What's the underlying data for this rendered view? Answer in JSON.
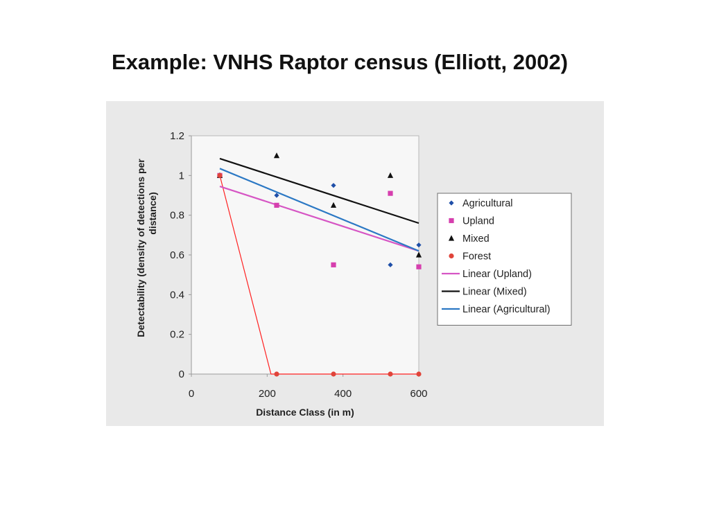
{
  "slide": {
    "title": "Example: VNHS Raptor census (Elliott, 2002)"
  },
  "chart_data": {
    "type": "scatter",
    "title": "",
    "xlabel": "Distance Class (in m)",
    "ylabel_lines": [
      "Detectability (density of detections per",
      "distance)"
    ],
    "xlim": [
      0,
      600
    ],
    "ylim": [
      0,
      1.2
    ],
    "x_ticks": [
      0,
      200,
      400,
      600
    ],
    "y_ticks": [
      0,
      0.2,
      0.4,
      0.6,
      0.8,
      1,
      1.2
    ],
    "x_tick_labels": [
      "0",
      "200",
      "400",
      "600"
    ],
    "y_tick_labels": [
      "0",
      "0.2",
      "0.4",
      "0.6",
      "0.8",
      "1",
      "1.2"
    ],
    "grid": false,
    "legend_position": "right",
    "series": [
      {
        "name": "Agricultural",
        "marker": "diamond",
        "color": "#1f4fa8",
        "points": [
          [
            75,
            1.0
          ],
          [
            225,
            0.9
          ],
          [
            375,
            0.95
          ],
          [
            525,
            0.55
          ],
          [
            600,
            0.65
          ]
        ]
      },
      {
        "name": "Upland",
        "marker": "square",
        "color": "#d63fae",
        "points": [
          [
            75,
            1.0
          ],
          [
            225,
            0.85
          ],
          [
            375,
            0.55
          ],
          [
            525,
            0.91
          ],
          [
            600,
            0.54
          ]
        ]
      },
      {
        "name": "Mixed",
        "marker": "triangle",
        "color": "#111111",
        "points": [
          [
            75,
            1.0
          ],
          [
            225,
            1.1
          ],
          [
            375,
            0.85
          ],
          [
            525,
            1.0
          ],
          [
            600,
            0.6
          ]
        ]
      },
      {
        "name": "Forest",
        "marker": "circle",
        "color": "#e0443a",
        "points": [
          [
            75,
            1.0
          ],
          [
            225,
            0.0
          ],
          [
            375,
            0.0
          ],
          [
            525,
            0.0
          ],
          [
            600,
            0.0
          ]
        ]
      }
    ],
    "trendlines": [
      {
        "name": "Linear (Upland)",
        "color": "#d655c4",
        "from": [
          75,
          0.945
        ],
        "to": [
          600,
          0.62
        ]
      },
      {
        "name": "Linear (Mixed)",
        "color": "#111111",
        "from": [
          75,
          1.085
        ],
        "to": [
          600,
          0.76
        ]
      },
      {
        "name": "Linear (Agricultural)",
        "color": "#2b78c4",
        "from": [
          75,
          1.035
        ],
        "to": [
          600,
          0.62
        ]
      }
    ],
    "annotation_line": {
      "color": "#ff2020",
      "points": [
        [
          75,
          1.0
        ],
        [
          210,
          0.0
        ],
        [
          600,
          0.0
        ]
      ]
    },
    "legend_entries": [
      {
        "label": "Agricultural",
        "kind": "marker",
        "marker": "diamond",
        "color": "#1f4fa8"
      },
      {
        "label": "Upland",
        "kind": "marker",
        "marker": "square",
        "color": "#d63fae"
      },
      {
        "label": "Mixed",
        "kind": "marker",
        "marker": "triangle",
        "color": "#111111"
      },
      {
        "label": "Forest",
        "kind": "marker",
        "marker": "circle",
        "color": "#e0443a"
      },
      {
        "label": "Linear (Upland)",
        "kind": "line",
        "color": "#d655c4"
      },
      {
        "label": "Linear (Mixed)",
        "kind": "line",
        "color": "#111111"
      },
      {
        "label": "Linear (Agricultural)",
        "kind": "line",
        "color": "#2b78c4"
      }
    ]
  }
}
